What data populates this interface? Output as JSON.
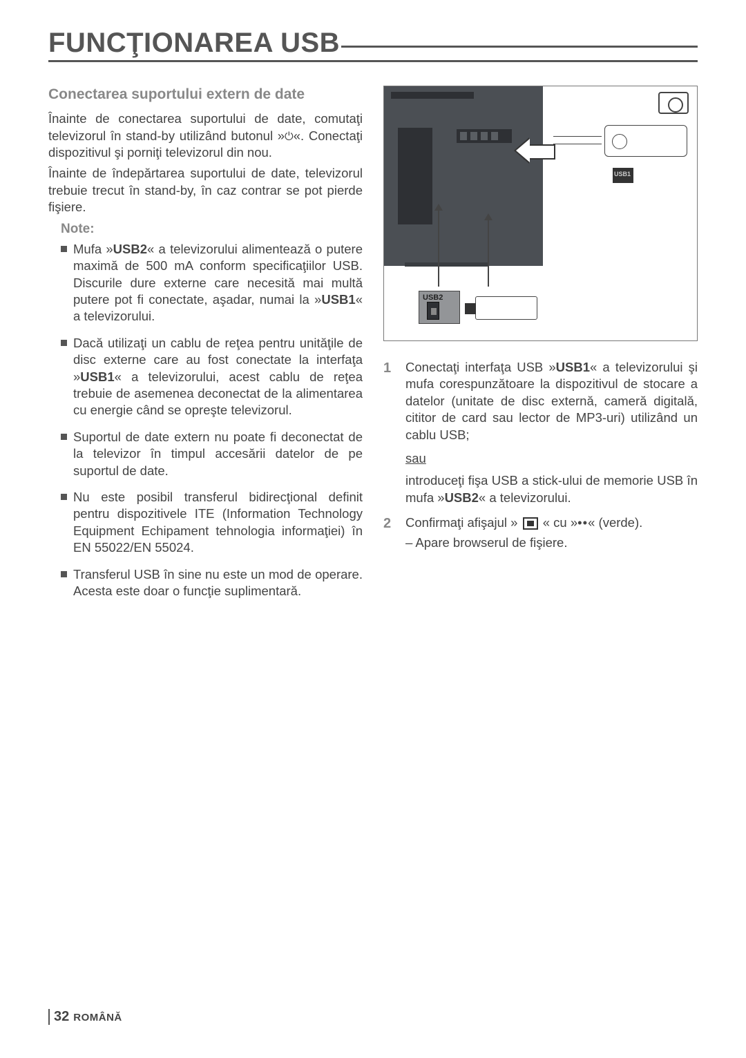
{
  "page_title": "FUNCŢIONAREA USB",
  "section_heading": "Conectarea suportului extern de date",
  "intro_p1": "Înainte de conectarea suportului de date, comutaţi televizorul în stand-by utilizând butonul »⏻«. Conectaţi dispozitivul şi porniţi televizorul din nou.",
  "intro_p2": "Înainte de îndepărtarea suportului de date, televizorul trebuie trecut în stand-by, în caz contrar se pot pierde fişiere.",
  "notes_label": "Note:",
  "notes": [
    {
      "pre": "Mufa »",
      "b1": "USB2",
      "mid1": "« a televizorului alimentează o putere maximă de 500 mA conform specificaţiilor USB. Discurile dure externe care necesită mai multă putere pot fi conectate, aşadar, numai la »",
      "b2": "USB1",
      "post": "« a televizorului."
    },
    {
      "pre": "Dacă utilizaţi un cablu de reţea pentru unităţile de disc externe care au fost conectate la interfaţa »",
      "b1": "USB1",
      "mid1": "« a televizorului, acest cablu de reţea trebuie de asemenea deconectat de la alimentarea cu energie când se opreşte televizorul.",
      "b2": "",
      "post": ""
    },
    {
      "pre": "Suportul de date extern nu poate fi deconectat de la televizor în timpul accesării datelor de pe suportul de date.",
      "b1": "",
      "mid1": "",
      "b2": "",
      "post": ""
    },
    {
      "pre": "Nu este posibil transferul bidirecţional definit pentru dispozitivele ITE (Information Technology Equipment Echipament tehnologia informaţiei) în EN 55022/EN 55024.",
      "b1": "",
      "mid1": "",
      "b2": "",
      "post": ""
    },
    {
      "pre": "Transferul USB în sine nu este un mod de operare. Acesta este doar o funcţie suplimentară.",
      "b1": "",
      "mid1": "",
      "b2": "",
      "post": ""
    }
  ],
  "diagram": {
    "usb2_label": "USB2",
    "usb1_label": "USB1"
  },
  "steps": [
    {
      "num": "1",
      "text_pre": "Conectaţi interfaţa USB »",
      "b1": "USB1",
      "text_mid": "« a televizorului şi mufa corespunzătoare la dispozitivul de stocare a datelor (unitate de disc externă, cameră digitală, cititor de card sau lector de MP3-uri) utilizând un cablu USB;",
      "or": "sau",
      "text2_pre": "introduceţi fişa USB a stick-ului de memorie USB în mufa »",
      "b2": "USB2",
      "text2_post": "« a televizorului."
    },
    {
      "num": "2",
      "text_pre": "Confirmaţi afişajul » ",
      "text_mid": " « cu »",
      "dots": "••",
      "text_post": "« (verde).",
      "sub": "– Apare browserul de fişiere."
    }
  ],
  "footer": {
    "page": "32",
    "language": "ROMÂNĂ"
  },
  "colors": {
    "heading_gray": "#888888",
    "body_text": "#444444",
    "rule": "#555555",
    "tv_panel": "#4b4f54",
    "usb2_box": "#939598"
  }
}
